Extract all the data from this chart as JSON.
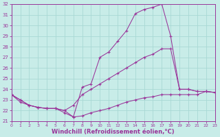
{
  "xlabel": "Windchill (Refroidissement éolien,°C)",
  "background_color": "#c8ece8",
  "grid_color": "#a8d8d4",
  "line_color": "#993399",
  "xlim": [
    0,
    23
  ],
  "ylim": [
    21,
    32
  ],
  "xticks": [
    0,
    1,
    2,
    3,
    4,
    5,
    6,
    7,
    8,
    9,
    10,
    11,
    12,
    13,
    14,
    15,
    16,
    17,
    18,
    19,
    20,
    21,
    22,
    23
  ],
  "yticks": [
    21,
    22,
    23,
    24,
    25,
    26,
    27,
    28,
    29,
    30,
    31,
    32
  ],
  "line1_x": [
    0,
    1,
    2,
    3,
    4,
    5,
    6,
    7,
    8,
    9,
    10,
    11,
    12,
    13,
    14,
    15,
    16,
    17,
    18,
    19,
    20,
    21,
    22,
    23
  ],
  "line1_y": [
    23.5,
    22.8,
    22.5,
    22.3,
    22.2,
    22.2,
    21.8,
    21.4,
    21.5,
    21.8,
    22.0,
    22.2,
    22.5,
    22.8,
    23.0,
    23.2,
    23.3,
    23.5,
    23.5,
    23.5,
    23.5,
    23.5,
    23.8,
    23.7
  ],
  "line2_x": [
    0,
    1,
    2,
    3,
    4,
    5,
    6,
    7,
    8,
    9,
    10,
    11,
    12,
    13,
    14,
    15,
    16,
    17,
    18,
    19,
    20,
    21,
    22,
    23
  ],
  "line2_y": [
    23.5,
    23.0,
    22.5,
    22.3,
    22.2,
    22.2,
    22.0,
    22.5,
    23.5,
    24.0,
    24.5,
    25.0,
    25.5,
    26.0,
    26.5,
    27.0,
    27.3,
    27.8,
    27.8,
    24.0,
    24.0,
    23.8,
    23.8,
    23.7
  ],
  "line3_x": [
    0,
    1,
    2,
    3,
    4,
    5,
    6,
    7,
    8,
    9,
    10,
    11,
    12,
    13,
    14,
    15,
    16,
    17,
    18,
    19,
    20,
    21,
    22,
    23
  ],
  "line3_y": [
    23.5,
    23.0,
    22.5,
    22.3,
    22.2,
    22.2,
    22.0,
    21.4,
    24.2,
    24.5,
    27.0,
    27.5,
    28.5,
    29.5,
    31.1,
    31.5,
    31.7,
    32.0,
    29.0,
    24.0,
    24.0,
    23.8,
    23.8,
    23.7
  ]
}
